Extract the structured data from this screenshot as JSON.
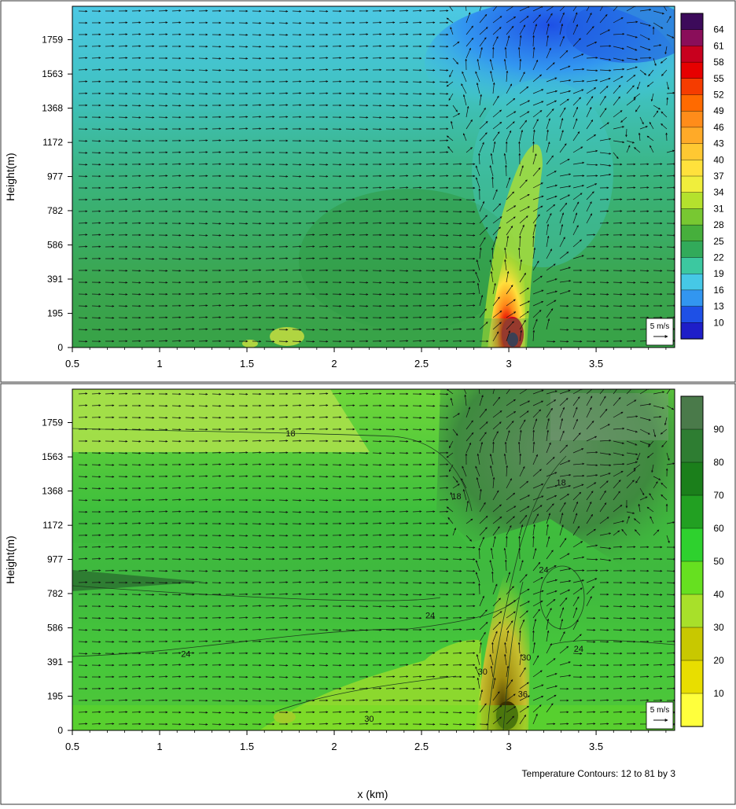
{
  "chart_data": [
    {
      "type": "heatmap",
      "title": "",
      "ylabel": "Height(m)",
      "xlabel": "",
      "x_ticks": [
        "0.5",
        "1",
        "1.5",
        "2",
        "2.5",
        "3",
        "3.5"
      ],
      "x_tick_values": [
        0.5,
        1,
        1.5,
        2,
        2.5,
        3,
        3.5
      ],
      "xlim": [
        0.5,
        3.95
      ],
      "y_ticks": [
        "0",
        "195",
        "391",
        "586",
        "782",
        "977",
        "1172",
        "1368",
        "1563",
        "1759"
      ],
      "y_tick_values": [
        0,
        195,
        391,
        586,
        782,
        977,
        1172,
        1368,
        1563,
        1759
      ],
      "ylim": [
        0,
        1950
      ],
      "colorbar_labels": [
        "64",
        "61",
        "58",
        "55",
        "52",
        "49",
        "46",
        "43",
        "40",
        "37",
        "34",
        "31",
        "28",
        "25",
        "22",
        "19",
        "16",
        "13",
        "10"
      ],
      "colorbar_colors": [
        "#3c0a5a",
        "#8a0e5a",
        "#c8001e",
        "#e60000",
        "#f53c00",
        "#ff6a00",
        "#ff8c1a",
        "#ffaa28",
        "#ffc832",
        "#ffe13c",
        "#f0ee3c",
        "#b4e12d",
        "#78c832",
        "#46af3c",
        "#32aa5a",
        "#3cc8a0",
        "#46c8e6",
        "#3296f0",
        "#1e50e6",
        "#1e1ec8"
      ],
      "vector_reference": "5 m/s"
    },
    {
      "type": "heatmap",
      "title": "",
      "ylabel": "Height(m)",
      "xlabel": "x (km)",
      "x_ticks": [
        "0.5",
        "1",
        "1.5",
        "2",
        "2.5",
        "3",
        "3.5"
      ],
      "x_tick_values": [
        0.5,
        1,
        1.5,
        2,
        2.5,
        3,
        3.5
      ],
      "xlim": [
        0.5,
        3.95
      ],
      "y_ticks": [
        "0",
        "195",
        "391",
        "586",
        "782",
        "977",
        "1172",
        "1368",
        "1563",
        "1759"
      ],
      "y_tick_values": [
        0,
        195,
        391,
        586,
        782,
        977,
        1172,
        1368,
        1563,
        1759
      ],
      "ylim": [
        0,
        1950
      ],
      "colorbar_labels": [
        "90",
        "80",
        "70",
        "60",
        "50",
        "40",
        "30",
        "20",
        "10"
      ],
      "colorbar_colors": [
        "#4a7a4a",
        "#2e7d32",
        "#1b7f1b",
        "#22a022",
        "#2ed12e",
        "#66e020",
        "#a8e02a",
        "#c8c800",
        "#e8de00",
        "#ffff3c"
      ],
      "vector_reference": "5 m/s",
      "contour_note": "Temperature Contours: 12 to 81 by 3",
      "contour_labels": [
        {
          "text": "18",
          "x": 1.75,
          "y": 1680
        },
        {
          "text": "18",
          "x": 2.7,
          "y": 1320
        },
        {
          "text": "18",
          "x": 3.3,
          "y": 1400
        },
        {
          "text": "24",
          "x": 3.2,
          "y": 900
        },
        {
          "text": "24",
          "x": 2.55,
          "y": 640
        },
        {
          "text": "24",
          "x": 1.15,
          "y": 420
        },
        {
          "text": "24",
          "x": 3.4,
          "y": 450
        },
        {
          "text": "30",
          "x": 2.85,
          "y": 320
        },
        {
          "text": "30",
          "x": 3.1,
          "y": 400
        },
        {
          "text": "30",
          "x": 2.2,
          "y": 50
        },
        {
          "text": "36",
          "x": 3.08,
          "y": 190
        }
      ]
    }
  ]
}
